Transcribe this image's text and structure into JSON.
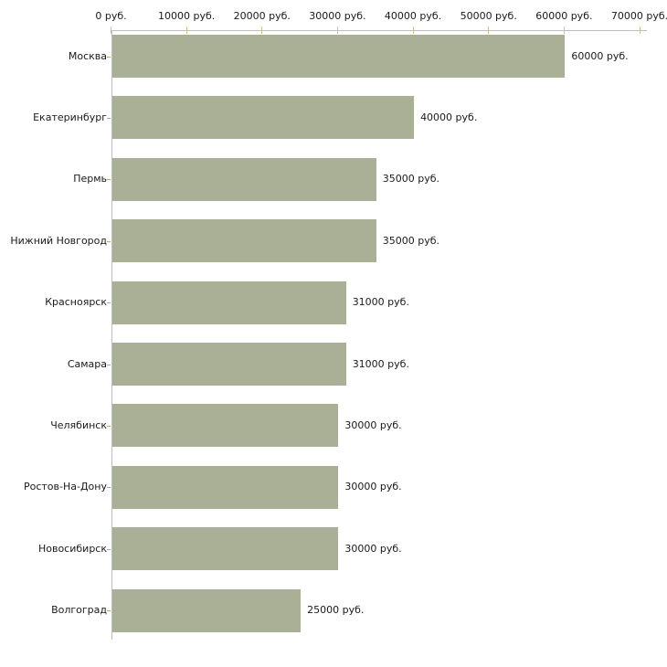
{
  "chart_data": {
    "type": "bar",
    "orientation": "horizontal",
    "title": "",
    "xlabel": "",
    "ylabel": "",
    "categories": [
      "Москва",
      "Екатеринбург",
      "Пермь",
      "Нижний Новгород",
      "Красноярск",
      "Самара",
      "Челябинск",
      "Ростов-На-Дону",
      "Новосибирск",
      "Волгоград"
    ],
    "values": [
      60000,
      40000,
      35000,
      35000,
      31000,
      31000,
      30000,
      30000,
      30000,
      25000
    ],
    "value_labels": [
      "60000 руб.",
      "40000 руб.",
      "35000 руб.",
      "35000 руб.",
      "31000 руб.",
      "31000 руб.",
      "30000 руб.",
      "30000 руб.",
      "30000 руб.",
      "25000 руб."
    ],
    "x_tick_values": [
      0,
      10000,
      20000,
      30000,
      40000,
      50000,
      60000,
      70000
    ],
    "x_tick_labels": [
      "0 руб.",
      "10000 руб.",
      "20000 руб.",
      "30000 руб.",
      "40000 руб.",
      "50000 руб.",
      "60000 руб.",
      "70000 руб."
    ],
    "xlim": [
      0,
      70000
    ],
    "unit": "руб.",
    "grid": false,
    "legend": null,
    "colors": {
      "bar": "#a9b096",
      "axis_line": "#bdbdbd",
      "x_tick": "#cdc388",
      "category_tick": "#c3a96d",
      "text": "#1a1a1a",
      "background": "#ffffff"
    }
  }
}
